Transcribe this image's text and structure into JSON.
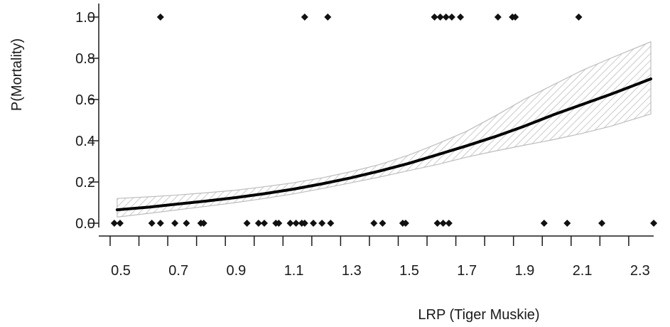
{
  "chart_data": {
    "type": "scatter",
    "title": "",
    "xlabel": "LRP (Tiger Muskie)",
    "ylabel": "P(Mortality)",
    "xlim": [
      0.5,
      2.35
    ],
    "ylim": [
      0.0,
      1.0
    ],
    "x_ticks": [
      0.5,
      0.6,
      0.7,
      0.8,
      0.9,
      1.0,
      1.1,
      1.2,
      1.3,
      1.4,
      1.5,
      1.6,
      1.7,
      1.8,
      1.9,
      2.0,
      2.1,
      2.2,
      2.3
    ],
    "x_tick_labels": [
      "0.5",
      "0.7",
      "0.9",
      "1.1",
      "1.3",
      "1.5",
      "1.7",
      "1.9",
      "2.1",
      "2.3"
    ],
    "y_ticks": [
      0.0,
      0.2,
      0.4,
      0.6,
      0.8,
      1.0
    ],
    "y_tick_labels": [
      "0.0",
      "0.2",
      "0.4",
      "0.6",
      "0.8",
      "1.0"
    ],
    "grid": false,
    "legend": "none",
    "colors": {
      "points": "#111111",
      "fit_line": "#000000",
      "band_hatch": "#bdbdbd",
      "axis": "#1a1a1a"
    },
    "points_mortality_1": [
      0.64,
      1.14,
      1.22,
      1.59,
      1.61,
      1.63,
      1.65,
      1.68,
      1.81,
      1.86,
      1.87,
      2.09
    ],
    "points_mortality_0": [
      0.48,
      0.5,
      0.61,
      0.64,
      0.69,
      0.73,
      0.78,
      0.79,
      0.94,
      0.98,
      1.0,
      1.04,
      1.05,
      1.09,
      1.11,
      1.13,
      1.14,
      1.17,
      1.2,
      1.23,
      1.38,
      1.41,
      1.48,
      1.49,
      1.6,
      1.62,
      1.64,
      1.97,
      2.05,
      2.17,
      2.35
    ],
    "fit": {
      "x": [
        0.49,
        0.6,
        0.7,
        0.8,
        0.9,
        1.0,
        1.1,
        1.2,
        1.3,
        1.4,
        1.5,
        1.6,
        1.7,
        1.8,
        1.9,
        2.0,
        2.1,
        2.2,
        2.34
      ],
      "y": [
        0.065,
        0.078,
        0.093,
        0.108,
        0.124,
        0.143,
        0.165,
        0.191,
        0.22,
        0.253,
        0.29,
        0.332,
        0.375,
        0.42,
        0.47,
        0.525,
        0.575,
        0.625,
        0.7
      ],
      "lower": [
        0.03,
        0.048,
        0.065,
        0.082,
        0.1,
        0.12,
        0.142,
        0.168,
        0.196,
        0.224,
        0.255,
        0.285,
        0.32,
        0.35,
        0.378,
        0.405,
        0.435,
        0.47,
        0.53
      ],
      "upper": [
        0.12,
        0.128,
        0.137,
        0.148,
        0.16,
        0.177,
        0.196,
        0.22,
        0.25,
        0.285,
        0.33,
        0.385,
        0.445,
        0.52,
        0.6,
        0.67,
        0.74,
        0.8,
        0.88
      ]
    }
  }
}
